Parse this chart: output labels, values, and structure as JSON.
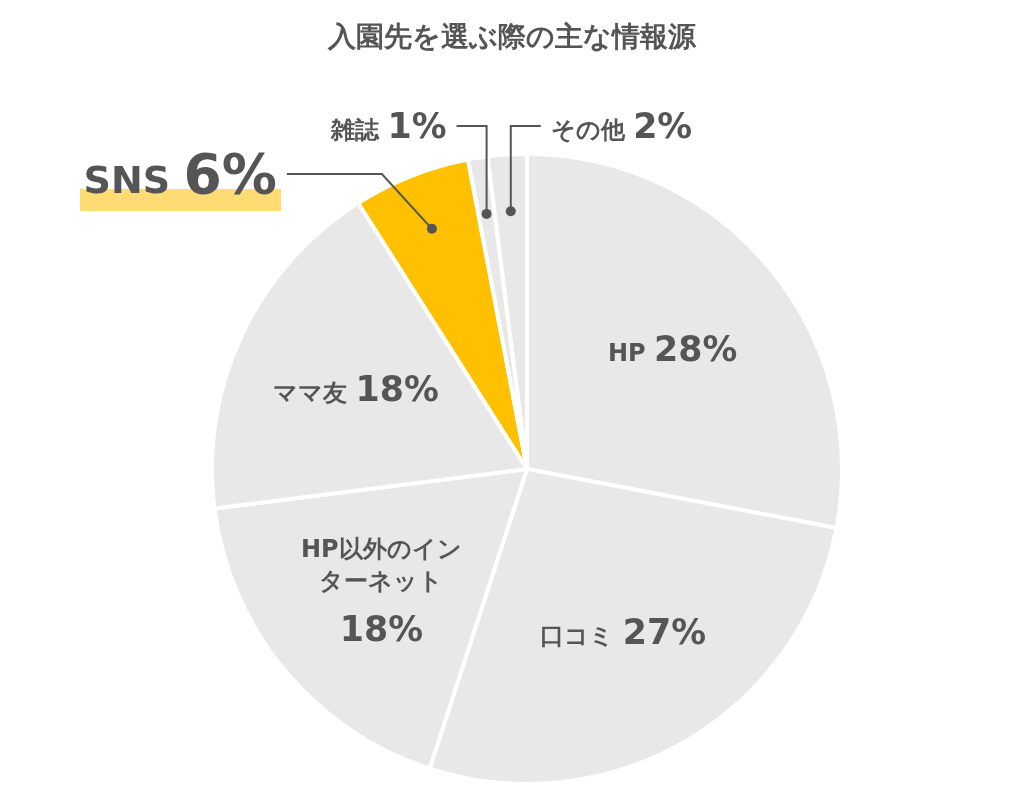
{
  "chart_data": {
    "type": "pie",
    "title": "入園先を選ぶ際の主な情報源",
    "categories": [
      "HP",
      "口コミ",
      "HP以外のインターネット",
      "ママ友",
      "SNS",
      "雑誌",
      "その他"
    ],
    "values": [
      28,
      27,
      18,
      18,
      6,
      1,
      2
    ],
    "value_labels": [
      "28%",
      "27%",
      "18%",
      "18%",
      "6%",
      "1%",
      "2%"
    ],
    "colors": [
      "#e8e8e8",
      "#e8e8e8",
      "#e8e8e8",
      "#e8e8e8",
      "#ffc000",
      "#e8e8e8",
      "#e8e8e8"
    ],
    "legend": false
  }
}
